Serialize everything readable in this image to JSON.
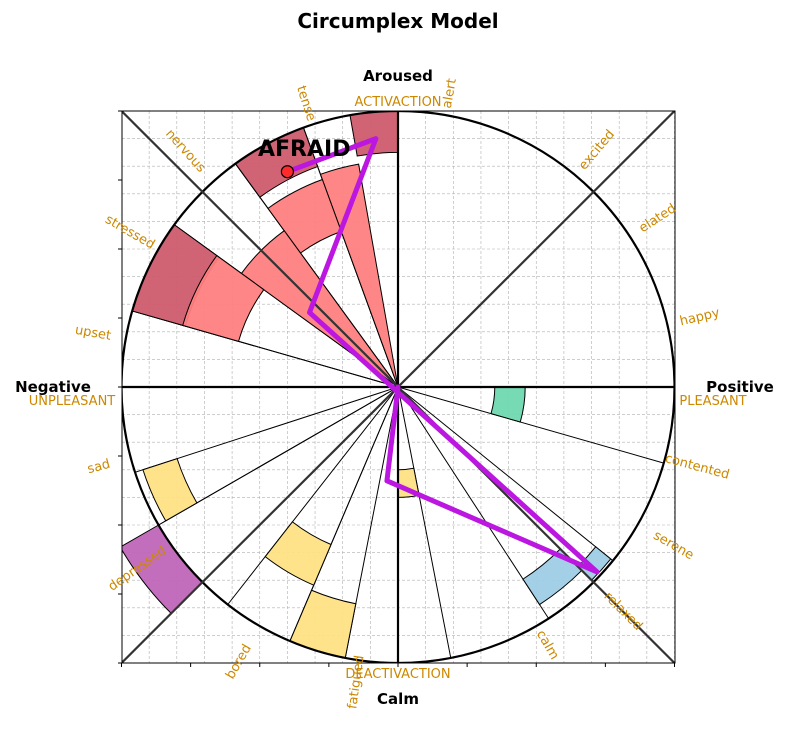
{
  "chart_data": {
    "type": "polar-bar",
    "title": "Circumplex Model",
    "axis_labels": {
      "top": "Aroused",
      "bottom": "Calm",
      "left": "Negative",
      "right": "Positive"
    },
    "pole_labels": {
      "top": "ACTIVACTION",
      "bottom": "DEACTIVACTION",
      "left": "UNPLEASANT",
      "right": "PLEASANT"
    },
    "colors": {
      "red": "#ff7f7f",
      "darkred": "#cd5c6e",
      "yellow": "#ffe285",
      "green": "#6fd9b0",
      "blue": "#9ecde6",
      "purple": "#c066b8",
      "trajectory": "#bb17e0",
      "accent_text": "#cc8800"
    },
    "emotions": [
      {
        "name": "alert",
        "angle": 80,
        "ring": 0
      },
      {
        "name": "excited",
        "angle": 50,
        "ring": 1
      },
      {
        "name": "elated",
        "angle": 33,
        "ring": 1
      },
      {
        "name": "happy",
        "angle": 13,
        "ring": 1
      },
      {
        "name": "contented",
        "angle": -15,
        "ring": 1
      },
      {
        "name": "serene",
        "angle": -30,
        "ring": 2
      },
      {
        "name": "relaxed",
        "angle": -45,
        "ring": 2
      },
      {
        "name": "calm",
        "angle": -60,
        "ring": 0
      },
      {
        "name": "fatigued",
        "angle": -98,
        "ring": 0
      },
      {
        "name": "bored",
        "angle": -120,
        "ring": 2
      },
      {
        "name": "depressed",
        "angle": -145,
        "ring": 2
      },
      {
        "name": "sad",
        "angle": -165,
        "ring": 1
      },
      {
        "name": "upset",
        "angle": 170,
        "ring": 1
      },
      {
        "name": "stressed",
        "angle": 150,
        "ring": 1
      },
      {
        "name": "nervous",
        "angle": 132,
        "ring": 2
      },
      {
        "name": "tense",
        "angle": 108,
        "ring": 0
      }
    ],
    "sectors": [
      {
        "t1": 90,
        "t2": 110,
        "r1": 0,
        "r2": 1.0
      },
      {
        "t1": 110,
        "t2": 126,
        "r1": 0,
        "r2": 1.0
      },
      {
        "t1": 126,
        "t2": 144,
        "r1": 0,
        "r2": 1.0
      },
      {
        "t1": 144,
        "t2": 164,
        "r1": 0,
        "r2": 1.0
      },
      {
        "t1": 164,
        "t2": 180,
        "r1": 0,
        "r2": 1.0
      },
      {
        "t1": 0,
        "t2": -16,
        "r1": 0,
        "r2": 1.0
      },
      {
        "t1": -39,
        "t2": -45,
        "r1": 0,
        "r2": 1.0
      },
      {
        "t1": -45,
        "t2": -57,
        "r1": 0,
        "r2": 1.0
      },
      {
        "t1": -79,
        "t2": -90,
        "r1": 0,
        "r2": 1.0
      },
      {
        "t1": -101,
        "t2": -113,
        "r1": 0,
        "r2": 1.0
      },
      {
        "t1": -113,
        "t2": -128,
        "r1": 0,
        "r2": 1.0
      },
      {
        "t1": -135,
        "t2": -150,
        "r1": 0,
        "r2": 1.0
      },
      {
        "t1": -150,
        "t2": -162,
        "r1": 0,
        "r2": 1.0
      }
    ],
    "bars": [
      {
        "t1": 90,
        "t2": 100,
        "r1": 0.85,
        "r2": 1.0,
        "color": "darkred"
      },
      {
        "t1": 100,
        "t2": 110,
        "r1": 0,
        "r2": 0.82,
        "color": "red"
      },
      {
        "t1": 110,
        "t2": 126,
        "r1": 0.85,
        "r2": 1.0,
        "color": "darkred"
      },
      {
        "t1": 110,
        "t2": 126,
        "r1": 0.6,
        "r2": 0.8,
        "color": "red"
      },
      {
        "t1": 126,
        "t2": 144,
        "r1": 0,
        "r2": 0.7,
        "color": "red"
      },
      {
        "t1": 144,
        "t2": 164,
        "r1": 0.8,
        "r2": 1.0,
        "color": "darkred"
      },
      {
        "t1": 144,
        "t2": 164,
        "r1": 0.6,
        "r2": 0.81,
        "color": "red"
      },
      {
        "t1": 0,
        "t2": -16,
        "r1": 0.35,
        "r2": 0.46,
        "color": "green"
      },
      {
        "t1": -39,
        "t2": -45,
        "r1": 0.92,
        "r2": 0.99,
        "color": "blue"
      },
      {
        "t1": -45,
        "t2": -57,
        "r1": 0.83,
        "r2": 0.94,
        "color": "blue"
      },
      {
        "t1": -79,
        "t2": -90,
        "r1": 0.3,
        "r2": 0.4,
        "color": "yellow"
      },
      {
        "t1": -101,
        "t2": -113,
        "r1": 0.8,
        "r2": 1.0,
        "color": "yellow"
      },
      {
        "t1": -113,
        "t2": -128,
        "r1": 0.62,
        "r2": 0.78,
        "color": "yellow"
      },
      {
        "t1": -135,
        "t2": -150,
        "r1": 1.0,
        "r2": 1.16,
        "color": "purple"
      },
      {
        "t1": -150,
        "t2": -162,
        "r1": 0.84,
        "r2": 0.97,
        "color": "yellow"
      }
    ],
    "trajectory": [
      [
        -0.4,
        0.78
      ],
      [
        -0.08,
        0.9
      ],
      [
        -0.32,
        0.27
      ],
      [
        0.72,
        -0.67
      ],
      [
        -0.04,
        -0.34
      ],
      [
        0,
        0
      ],
      [
        -0.04,
        -0.34
      ],
      [
        0.72,
        -0.67
      ],
      [
        -0.32,
        0.27
      ],
      [
        0.72,
        -0.67
      ]
    ],
    "current_point": {
      "x": -0.4,
      "y": 0.78
    },
    "annotation": "AFRAID",
    "xlim": [
      -1,
      1
    ],
    "ylim": [
      -1,
      1
    ],
    "grid": true
  }
}
